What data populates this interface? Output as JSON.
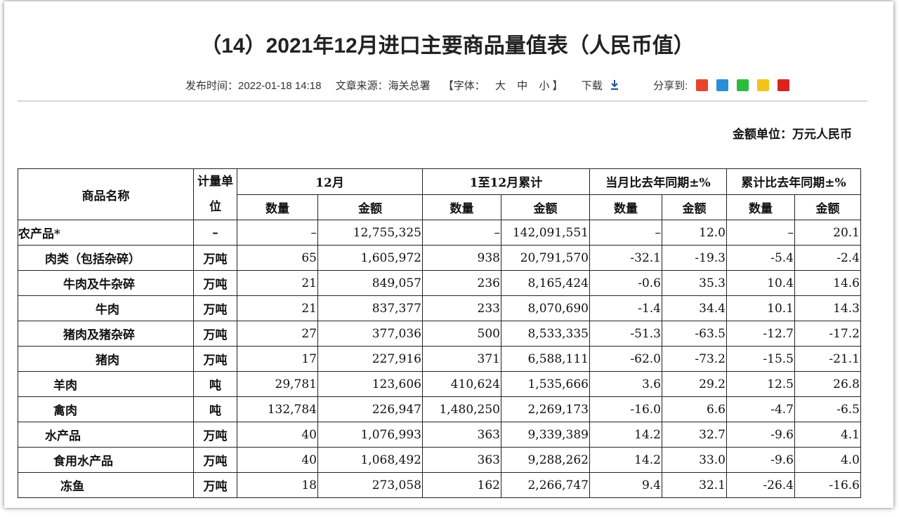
{
  "header": {
    "title": "（14）2021年12月进口主要商品量值表（人民币值）",
    "meta": {
      "publish": "发布时间：2022-01-18 14:18",
      "source": "文章来源：海关总署",
      "font_label": "【字体：",
      "font_sizes": [
        "大",
        "中",
        "小"
      ],
      "font_close": "】",
      "download": "下载",
      "share": "分享到:"
    }
  },
  "unit_note": "金额单位：万元人民币",
  "table": {
    "header": {
      "name": "商品名称",
      "unit": "计量单位",
      "month": "12月",
      "cumulative": "1至12月累计",
      "month_yoy": "当月比去年同期±%",
      "cum_yoy": "累计比去年同期±%",
      "sub": [
        "数量",
        "金额",
        "数量",
        "金额",
        "数量",
        "金额",
        "数量",
        "金额"
      ]
    },
    "rows": [
      [
        "农产品*",
        "–",
        "–",
        "12,755,325",
        "–",
        "142,091,551",
        "–",
        "12.0",
        "–",
        "20.1"
      ],
      [
        "肉类（包括杂碎）",
        "万吨",
        "65",
        "1,605,972",
        "938",
        "20,791,570",
        "-32.1",
        "-19.3",
        "-5.4",
        "-2.4"
      ],
      [
        "牛肉及牛杂碎",
        "万吨",
        "21",
        "849,057",
        "236",
        "8,165,424",
        "-0.6",
        "35.3",
        "10.4",
        "14.6"
      ],
      [
        "牛肉",
        "万吨",
        "21",
        "837,377",
        "233",
        "8,070,690",
        "-1.4",
        "34.4",
        "10.1",
        "14.3"
      ],
      [
        "猪肉及猪杂碎",
        "万吨",
        "27",
        "377,036",
        "500",
        "8,533,335",
        "-51.3",
        "-63.5",
        "-12.7",
        "-17.2"
      ],
      [
        "猪肉",
        "万吨",
        "17",
        "227,916",
        "371",
        "6,588,111",
        "-62.0",
        "-73.2",
        "-15.5",
        "-21.1"
      ],
      [
        "羊肉",
        "吨",
        "29,781",
        "123,606",
        "410,624",
        "1,535,666",
        "3.6",
        "29.2",
        "12.5",
        "26.8"
      ],
      [
        "禽肉",
        "吨",
        "132,784",
        "226,947",
        "1,480,250",
        "2,269,173",
        "-16.0",
        "6.6",
        "-4.7",
        "-6.5"
      ],
      [
        "水产品",
        "万吨",
        "40",
        "1,076,993",
        "363",
        "9,339,389",
        "14.2",
        "32.7",
        "-9.6",
        "4.1"
      ],
      [
        "食用水产品",
        "万吨",
        "40",
        "1,068,492",
        "363",
        "9,288,262",
        "14.2",
        "33.0",
        "-9.6",
        "4.0"
      ],
      [
        "冻鱼",
        "万吨",
        "18",
        "273,058",
        "162",
        "2,266,747",
        "9.4",
        "32.1",
        "-26.4",
        "-16.6"
      ]
    ]
  }
}
